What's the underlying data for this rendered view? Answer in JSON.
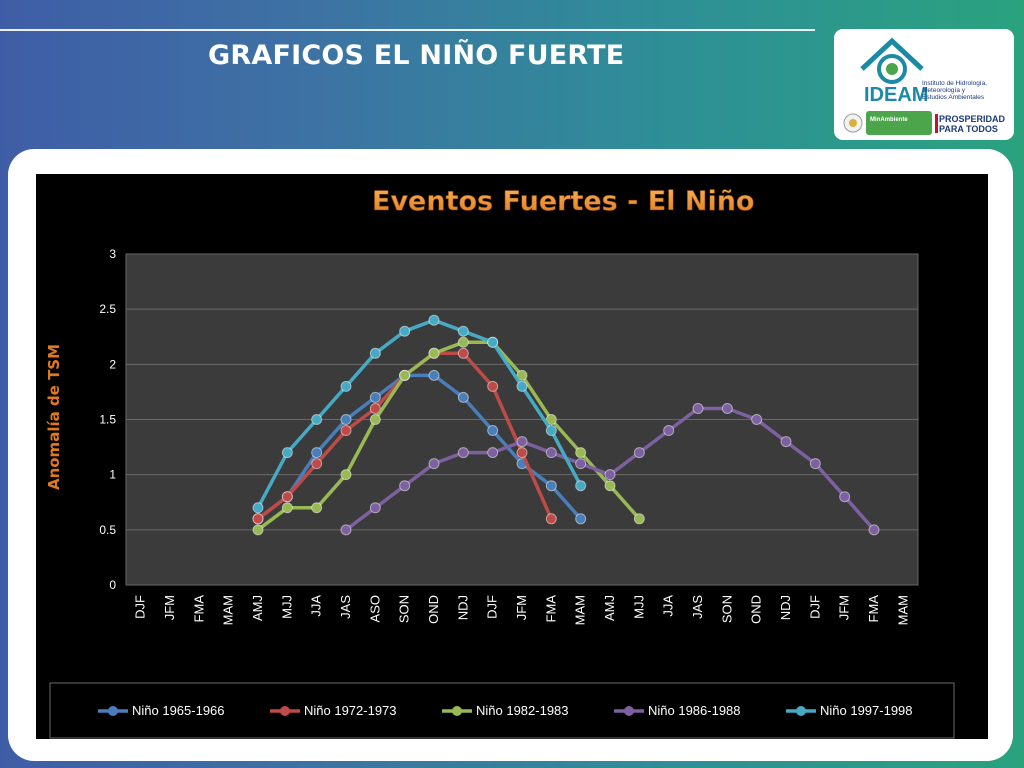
{
  "slide": {
    "title": "GRAFICOS EL NIÑO FUERTE"
  },
  "logo": {
    "brand": "IDEAM",
    "institute": [
      "Instituto de Hidrología,",
      "Meteorología y",
      "Estudios Ambientales"
    ],
    "ministry": "MinAmbiente",
    "slogan": [
      "PROSPERIDAD",
      "PARA TODOS"
    ],
    "colors": {
      "teal": "#1b8aa5",
      "navy": "#1b3a7a",
      "green": "#4ca54b"
    }
  },
  "chart_data": {
    "type": "line",
    "title": "Eventos Fuertes -  El Niño",
    "xlabel": "",
    "ylabel": "Anomalía de TSM",
    "ylim": [
      0,
      3
    ],
    "yticks": [
      "0",
      "0.5",
      "1",
      "1.5",
      "2",
      "2.5",
      "3"
    ],
    "categories": [
      "DJF",
      "JFM",
      "FMA",
      "MAM",
      "AMJ",
      "MJJ",
      "JJA",
      "JAS",
      "ASO",
      "SON",
      "OND",
      "NDJ",
      "DJF",
      "JFM",
      "FMA",
      "MAM",
      "AMJ",
      "MJJ",
      "JJA",
      "JAS",
      "SON",
      "OND",
      "NDJ",
      "DJF",
      "JFM",
      "FMA",
      "MAM"
    ],
    "grid": true,
    "legend_position": "bottom",
    "series": [
      {
        "name": "Niño 1965-1966",
        "color": "#4a7ebb",
        "values": [
          null,
          null,
          null,
          null,
          0.6,
          0.8,
          1.2,
          1.5,
          1.7,
          1.9,
          1.9,
          1.7,
          1.4,
          1.1,
          0.9,
          0.6,
          null,
          null,
          null,
          null,
          null,
          null,
          null,
          null,
          null,
          null,
          null
        ]
      },
      {
        "name": "Niño 1972-1973",
        "color": "#be4b48",
        "values": [
          null,
          null,
          null,
          null,
          0.6,
          0.8,
          1.1,
          1.4,
          1.6,
          1.9,
          2.1,
          2.1,
          1.8,
          1.2,
          0.6,
          null,
          null,
          null,
          null,
          null,
          null,
          null,
          null,
          null,
          null,
          null,
          null
        ]
      },
      {
        "name": "Niño 1982-1983",
        "color": "#98b954",
        "values": [
          null,
          null,
          null,
          null,
          0.5,
          0.7,
          0.7,
          1.0,
          1.5,
          1.9,
          2.1,
          2.2,
          2.2,
          1.9,
          1.5,
          1.2,
          0.9,
          0.6,
          null,
          null,
          null,
          null,
          null,
          null,
          null,
          null,
          null
        ]
      },
      {
        "name": "Niño 1986-1988",
        "color": "#7d60a0",
        "values": [
          null,
          null,
          null,
          null,
          null,
          null,
          null,
          0.5,
          0.7,
          0.9,
          1.1,
          1.2,
          1.2,
          1.3,
          1.2,
          1.1,
          1.0,
          1.2,
          1.4,
          1.6,
          1.6,
          1.5,
          1.3,
          1.1,
          0.8,
          0.5,
          null
        ]
      },
      {
        "name": "Niño 1997-1998",
        "color": "#46aac5",
        "values": [
          null,
          null,
          null,
          null,
          0.7,
          1.2,
          1.5,
          1.8,
          2.1,
          2.3,
          2.4,
          2.3,
          2.2,
          1.8,
          1.4,
          0.9,
          null,
          null,
          null,
          null,
          null,
          null,
          null,
          null,
          null,
          null,
          null
        ]
      }
    ]
  }
}
